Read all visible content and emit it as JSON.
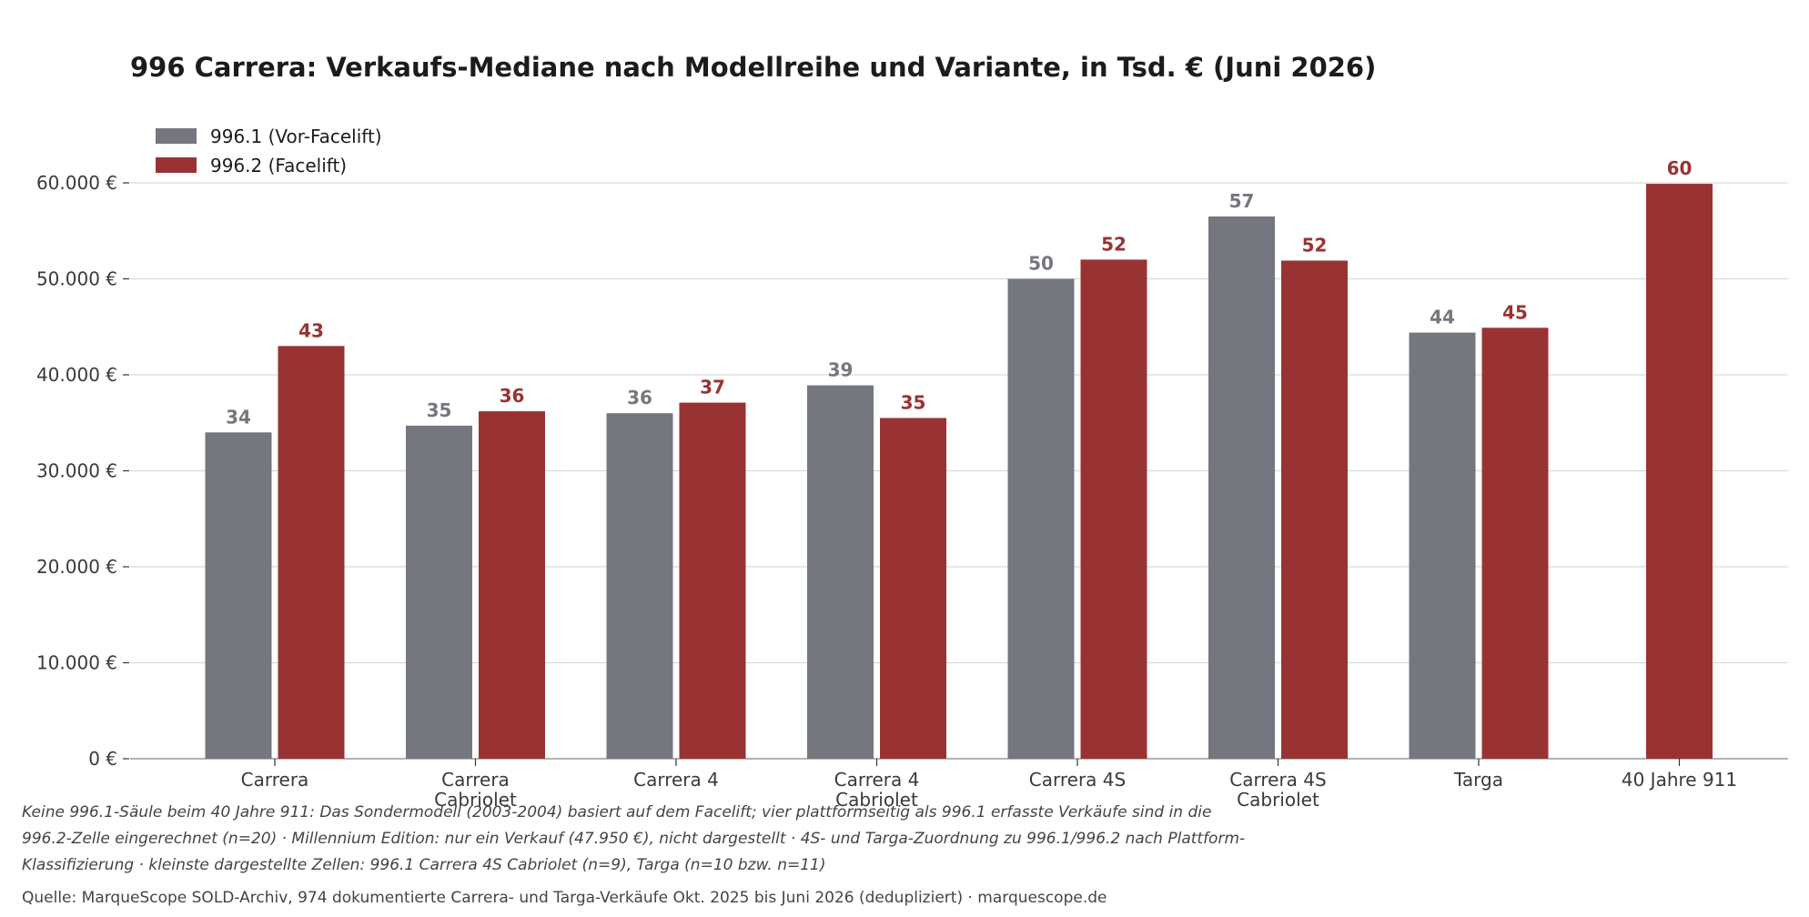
{
  "chart_data": {
    "type": "bar",
    "title": "996 Carrera: Verkaufs-Mediane nach Modellreihe und Variante, in Tsd. € (Juni 2026)",
    "categories": [
      [
        "Carrera"
      ],
      [
        "Carrera",
        "Cabriolet"
      ],
      [
        "Carrera 4"
      ],
      [
        "Carrera 4",
        "Cabriolet"
      ],
      [
        "Carrera 4S"
      ],
      [
        "Carrera 4S",
        "Cabriolet"
      ],
      [
        "Targa"
      ],
      [
        "40 Jahre 911"
      ]
    ],
    "series": [
      {
        "name": "996.1 (Vor-Facelift)",
        "color": "#74777e",
        "values": [
          34000,
          34700,
          36000,
          38900,
          50000,
          56500,
          44400,
          null
        ],
        "labels": [
          "34",
          "35",
          "36",
          "39",
          "50",
          "57",
          "44",
          null
        ]
      },
      {
        "name": "996.2 (Facelift)",
        "color": "#993333",
        "values": [
          43000,
          36200,
          37100,
          35500,
          52000,
          51900,
          44900,
          59900
        ],
        "labels": [
          "43",
          "36",
          "37",
          "35",
          "52",
          "52",
          "45",
          "60"
        ]
      }
    ],
    "ylim": [
      0,
      60000
    ],
    "yticks": [
      {
        "value": 0,
        "label": "0 €"
      },
      {
        "value": 10000,
        "label": "10.000 €"
      },
      {
        "value": 20000,
        "label": "20.000 €"
      },
      {
        "value": 30000,
        "label": "30.000 €"
      },
      {
        "value": 40000,
        "label": "40.000 €"
      },
      {
        "value": 50000,
        "label": "50.000 €"
      },
      {
        "value": 60000,
        "label": "60.000 €"
      }
    ],
    "grid": true,
    "legend": "top-left",
    "xlabel": "",
    "ylabel": ""
  },
  "footnote_lines": [
    "Keine 996.1-Säule beim 40 Jahre 911: Das Sondermodell (2003-2004) basiert auf dem Facelift; vier plattformseitig als 996.1 erfasste Verkäufe sind in die",
    "996.2-Zelle eingerechnet (n=20) · Millennium Edition: nur ein Verkauf (47.950 €), nicht dargestellt · 4S- und Targa-Zuordnung zu 996.1/996.2 nach Plattform-",
    "Klassifizierung · kleinste dargestellte Zellen: 996.1 Carrera 4S Cabriolet (n=9), Targa (n=10 bzw. n=11)"
  ],
  "source": "Quelle: MarqueScope SOLD-Archiv, 974 dokumentierte Carrera- und Targa-Verkäufe Okt. 2025 bis Juni 2026 (dedupliziert) · marquescope.de"
}
